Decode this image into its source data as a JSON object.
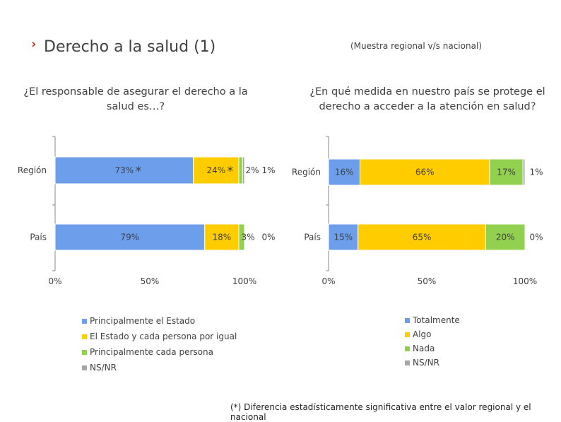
{
  "slide": {
    "title_arrow": "›",
    "title": "Derecho a la salud (1)",
    "sample_note": "(Muestra regional v/s nacional)",
    "footnote": "(*) Diferencia estadísticamente significativa entre el valor regional y el nacional"
  },
  "colors": {
    "blue": "#6D9EEB",
    "yellow": "#FFCC00",
    "green": "#92D050",
    "gray": "#A6A6A6"
  },
  "chart_data": [
    {
      "type": "bar",
      "orientation": "horizontal",
      "stacked": true,
      "title": "¿El responsable de asegurar el derecho a la salud es…?",
      "categories": [
        "Región",
        "País"
      ],
      "xlim": [
        0,
        100
      ],
      "x_ticks": [
        "0%",
        "50%",
        "100%"
      ],
      "series": [
        {
          "name": "Principalmente el Estado",
          "color": "#6D9EEB",
          "values": [
            73,
            79
          ],
          "labels": [
            "73%",
            "79%"
          ]
        },
        {
          "name": "El Estado y cada persona por igual",
          "color": "#FFCC00",
          "values": [
            24,
            18
          ],
          "labels": [
            "24%",
            "18%"
          ]
        },
        {
          "name": "Principalmente cada persona",
          "color": "#92D050",
          "values": [
            2,
            3
          ],
          "labels": [
            "2%",
            "3%"
          ]
        },
        {
          "name": "NS/NR",
          "color": "#A6A6A6",
          "values": [
            1,
            0
          ],
          "labels": [
            "1%",
            "0%"
          ]
        }
      ],
      "significance_marks": [
        {
          "category": "Región",
          "series": "Principalmente el Estado",
          "mark": "*"
        },
        {
          "category": "Región",
          "series": "El Estado y cada persona por igual",
          "mark": "*"
        }
      ]
    },
    {
      "type": "bar",
      "orientation": "horizontal",
      "stacked": true,
      "title": "¿En qué medida en nuestro país se protege el derecho a acceder a la atención en salud?",
      "categories": [
        "Región",
        "País"
      ],
      "xlim": [
        0,
        100
      ],
      "x_ticks": [
        "0%",
        "50%",
        "100%"
      ],
      "series": [
        {
          "name": "Totalmente",
          "color": "#6D9EEB",
          "values": [
            16,
            15
          ],
          "labels": [
            "16%",
            "15%"
          ]
        },
        {
          "name": "Algo",
          "color": "#FFCC00",
          "values": [
            66,
            65
          ],
          "labels": [
            "66%",
            "65%"
          ]
        },
        {
          "name": "Nada",
          "color": "#92D050",
          "values": [
            17,
            20
          ],
          "labels": [
            "17%",
            "20%"
          ]
        },
        {
          "name": "NS/NR",
          "color": "#A6A6A6",
          "values": [
            1,
            0
          ],
          "labels": [
            "1%",
            "0%"
          ]
        }
      ],
      "significance_marks": []
    }
  ]
}
